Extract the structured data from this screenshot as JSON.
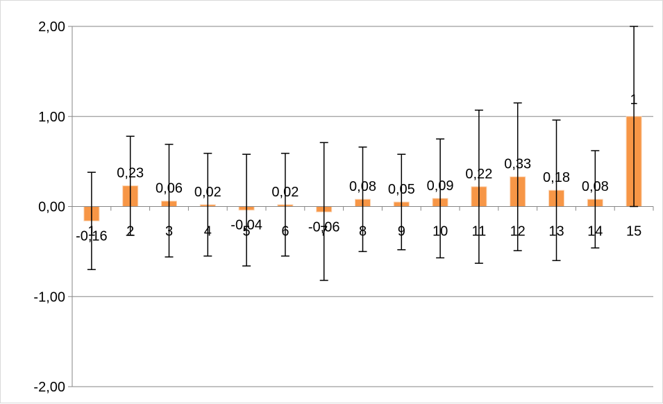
{
  "chart_data": {
    "type": "bar",
    "categories": [
      "1",
      "2",
      "3",
      "4",
      "5",
      "6",
      "7",
      "8",
      "9",
      "10",
      "11",
      "12",
      "13",
      "14",
      "15"
    ],
    "values": [
      -0.16,
      0.23,
      0.06,
      0.02,
      -0.04,
      0.02,
      -0.06,
      0.08,
      0.05,
      0.09,
      0.22,
      0.33,
      0.18,
      0.08,
      1
    ],
    "data_labels": [
      "-0,16",
      "0,23",
      "0,06",
      "0,02",
      "-0,04",
      "0,02",
      "-0,06",
      "0,08",
      "0,05",
      "0,09",
      "0,22",
      "0,33",
      "0,18",
      "0,08",
      "1"
    ],
    "error_high": [
      0.38,
      0.78,
      0.69,
      0.59,
      0.58,
      0.59,
      0.71,
      0.66,
      0.58,
      0.75,
      1.07,
      1.15,
      0.96,
      0.62,
      2.0
    ],
    "error_low": [
      -0.7,
      -0.32,
      -0.56,
      -0.55,
      -0.66,
      -0.55,
      -0.82,
      -0.5,
      -0.48,
      -0.57,
      -0.63,
      -0.49,
      -0.6,
      -0.46,
      0.0
    ],
    "ylim": [
      -2,
      2
    ],
    "yticks": [
      2,
      1,
      0,
      -1,
      -2
    ],
    "ytick_labels": [
      "2,00",
      "1,00",
      "0,00",
      "-1,00",
      "-2,00"
    ],
    "grid": true,
    "bar_color": "#F79646",
    "error_bar_color": "#000000",
    "gridline_color": "#868686"
  }
}
